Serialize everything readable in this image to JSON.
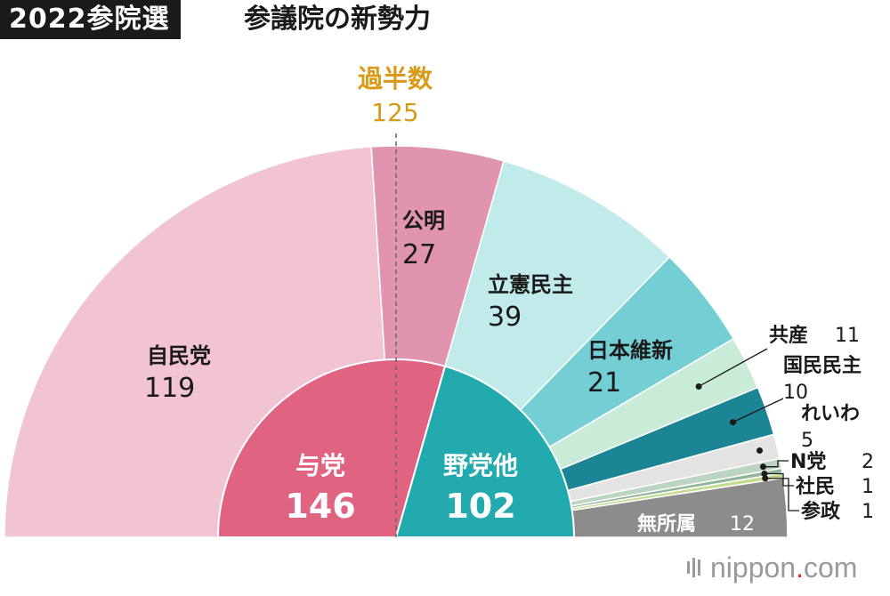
{
  "header": {
    "tag": "2022参院選",
    "title": "参議院の新勢力"
  },
  "majority": {
    "label": "過半数",
    "value": "125"
  },
  "logo": {
    "name": "nippon",
    "dot": ".",
    "suffix": "com"
  },
  "colors": {
    "majority_label": "#d99a17",
    "majority_line": "#666666"
  },
  "chart_data": {
    "type": "pie",
    "subtype": "parliament-semicircle",
    "title": "参議院の新勢力",
    "total": 248,
    "majority": 125,
    "parties": [
      {
        "name": "自民党",
        "seats": 119,
        "value_label": "119",
        "color": "#f2c4d2"
      },
      {
        "name": "公明",
        "seats": 27,
        "value_label": "27",
        "color": "#e094b0"
      },
      {
        "name": "立憲民主",
        "seats": 39,
        "value_label": "39",
        "color": "#c0ebea"
      },
      {
        "name": "日本維新",
        "seats": 21,
        "value_label": "21",
        "color": "#73cfd4"
      },
      {
        "name": "共産",
        "seats": 11,
        "value_label": "11",
        "color": "#c9ecd8"
      },
      {
        "name": "国民民主",
        "seats": 10,
        "value_label": "10",
        "color": "#1b8595"
      },
      {
        "name": "れいわ",
        "seats": 5,
        "value_label": "5",
        "color": "#e3e3e3"
      },
      {
        "name": "N党",
        "seats": 2,
        "value_label": "2",
        "color": "#bcd4c2"
      },
      {
        "name": "社民",
        "seats": 1,
        "value_label": "1",
        "color": "#8fb69a"
      },
      {
        "name": "参政",
        "seats": 1,
        "value_label": "1",
        "color": "#c3dc8c"
      },
      {
        "name": "無所属",
        "seats": 12,
        "value_label": "12",
        "color": "#8c8c8c"
      }
    ],
    "blocs": [
      {
        "name": "与党",
        "seats": 146,
        "value_label": "146",
        "color": "#e06482"
      },
      {
        "name": "野党他",
        "seats": 102,
        "value_label": "102",
        "color": "#22aaaf"
      }
    ]
  }
}
